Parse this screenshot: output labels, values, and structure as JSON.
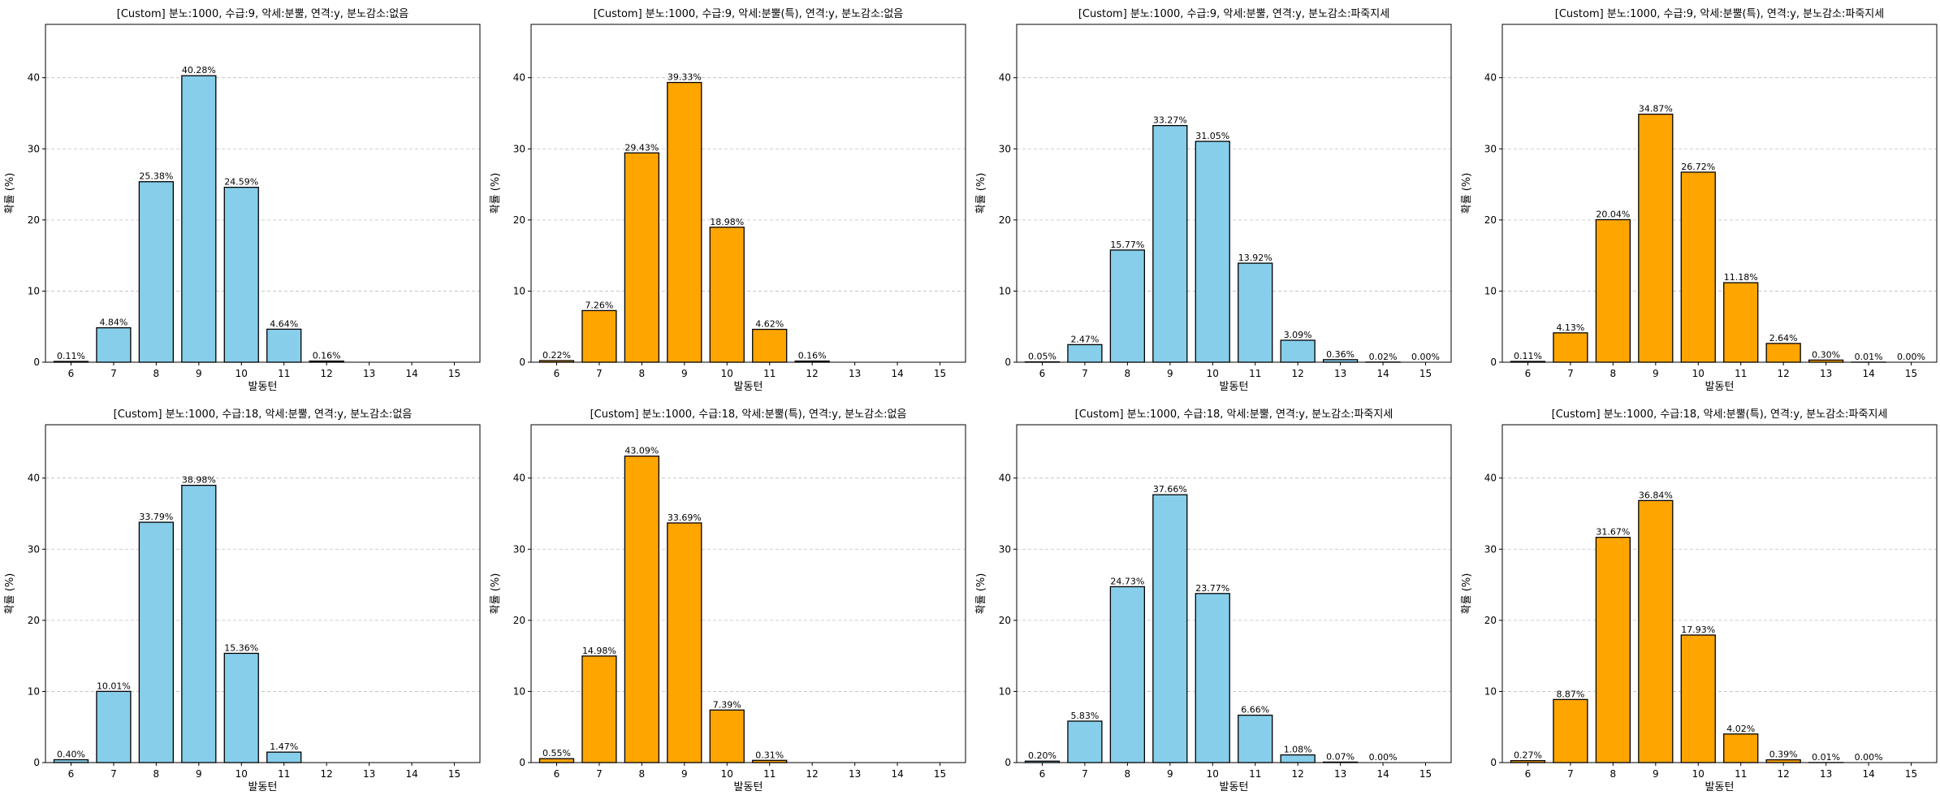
{
  "figure": {
    "xlabel": "발동턴",
    "ylabel": "확률 (%)"
  },
  "chart_data": [
    {
      "type": "bar",
      "title": "[Custom] 분노:1000, 수급:9, 악세:분뿔, 연격:y, 분노감소:없음",
      "xlabel": "발동턴",
      "ylabel": "확률 (%)",
      "categories": [
        "6",
        "7",
        "8",
        "9",
        "10",
        "11",
        "12",
        "13",
        "14",
        "15"
      ],
      "values": [
        0.11,
        4.84,
        25.38,
        40.28,
        24.59,
        4.64,
        0.16,
        null,
        null,
        null
      ],
      "labels": [
        "0.11%",
        "4.84%",
        "25.38%",
        "40.28%",
        "24.59%",
        "4.64%",
        "0.16%",
        "",
        "",
        ""
      ],
      "color": "#87CEEB",
      "ylim": [
        0,
        47.5
      ],
      "yticks": [
        0,
        10,
        20,
        30,
        40
      ],
      "grid": "y-dashed"
    },
    {
      "type": "bar",
      "title": "[Custom] 분노:1000, 수급:9, 악세:분뿔(특), 연격:y, 분노감소:없음",
      "xlabel": "발동턴",
      "ylabel": "확률 (%)",
      "categories": [
        "6",
        "7",
        "8",
        "9",
        "10",
        "11",
        "12",
        "13",
        "14",
        "15"
      ],
      "values": [
        0.22,
        7.26,
        29.43,
        39.33,
        18.98,
        4.62,
        0.16,
        null,
        null,
        null
      ],
      "labels": [
        "0.22%",
        "7.26%",
        "29.43%",
        "39.33%",
        "18.98%",
        "4.62%",
        "0.16%",
        "",
        "",
        ""
      ],
      "color": "#FFA500",
      "ylim": [
        0,
        47.5
      ],
      "yticks": [
        0,
        10,
        20,
        30,
        40
      ],
      "grid": "y-dashed"
    },
    {
      "type": "bar",
      "title": "[Custom] 분노:1000, 수급:9, 악세:분뿔, 연격:y, 분노감소:파죽지세",
      "xlabel": "발동턴",
      "ylabel": "확률 (%)",
      "categories": [
        "6",
        "7",
        "8",
        "9",
        "10",
        "11",
        "12",
        "13",
        "14",
        "15"
      ],
      "values": [
        0.05,
        2.47,
        15.77,
        33.27,
        31.05,
        13.92,
        3.09,
        0.36,
        0.02,
        0.0
      ],
      "labels": [
        "0.05%",
        "2.47%",
        "15.77%",
        "33.27%",
        "31.05%",
        "13.92%",
        "3.09%",
        "0.36%",
        "0.02%",
        "0.00%"
      ],
      "color": "#87CEEB",
      "ylim": [
        0,
        47.5
      ],
      "yticks": [
        0,
        10,
        20,
        30,
        40
      ],
      "grid": "y-dashed"
    },
    {
      "type": "bar",
      "title": "[Custom] 분노:1000, 수급:9, 악세:분뿔(특), 연격:y, 분노감소:파죽지세",
      "xlabel": "발동턴",
      "ylabel": "확률 (%)",
      "categories": [
        "6",
        "7",
        "8",
        "9",
        "10",
        "11",
        "12",
        "13",
        "14",
        "15"
      ],
      "values": [
        0.11,
        4.13,
        20.04,
        34.87,
        26.72,
        11.18,
        2.64,
        0.3,
        0.01,
        0.0
      ],
      "labels": [
        "0.11%",
        "4.13%",
        "20.04%",
        "34.87%",
        "26.72%",
        "11.18%",
        "2.64%",
        "0.30%",
        "0.01%",
        "0.00%"
      ],
      "color": "#FFA500",
      "ylim": [
        0,
        47.5
      ],
      "yticks": [
        0,
        10,
        20,
        30,
        40
      ],
      "grid": "y-dashed"
    },
    {
      "type": "bar",
      "title": "[Custom] 분노:1000, 수급:18, 악세:분뿔, 연격:y, 분노감소:없음",
      "xlabel": "발동턴",
      "ylabel": "확률 (%)",
      "categories": [
        "6",
        "7",
        "8",
        "9",
        "10",
        "11",
        "12",
        "13",
        "14",
        "15"
      ],
      "values": [
        0.4,
        10.01,
        33.79,
        38.98,
        15.36,
        1.47,
        null,
        null,
        null,
        null
      ],
      "labels": [
        "0.40%",
        "10.01%",
        "33.79%",
        "38.98%",
        "15.36%",
        "1.47%",
        "",
        "",
        "",
        ""
      ],
      "color": "#87CEEB",
      "ylim": [
        0,
        47.5
      ],
      "yticks": [
        0,
        10,
        20,
        30,
        40
      ],
      "grid": "y-dashed"
    },
    {
      "type": "bar",
      "title": "[Custom] 분노:1000, 수급:18, 악세:분뿔(특), 연격:y, 분노감소:없음",
      "xlabel": "발동턴",
      "ylabel": "확률 (%)",
      "categories": [
        "6",
        "7",
        "8",
        "9",
        "10",
        "11",
        "12",
        "13",
        "14",
        "15"
      ],
      "values": [
        0.55,
        14.98,
        43.09,
        33.69,
        7.39,
        0.31,
        null,
        null,
        null,
        null
      ],
      "labels": [
        "0.55%",
        "14.98%",
        "43.09%",
        "33.69%",
        "7.39%",
        "0.31%",
        "",
        "",
        "",
        ""
      ],
      "color": "#FFA500",
      "ylim": [
        0,
        47.5
      ],
      "yticks": [
        0,
        10,
        20,
        30,
        40
      ],
      "grid": "y-dashed"
    },
    {
      "type": "bar",
      "title": "[Custom] 분노:1000, 수급:18, 악세:분뿔, 연격:y, 분노감소:파죽지세",
      "xlabel": "발동턴",
      "ylabel": "확률 (%)",
      "categories": [
        "6",
        "7",
        "8",
        "9",
        "10",
        "11",
        "12",
        "13",
        "14",
        "15"
      ],
      "values": [
        0.2,
        5.83,
        24.73,
        37.66,
        23.77,
        6.66,
        1.08,
        0.07,
        0.0,
        null
      ],
      "labels": [
        "0.20%",
        "5.83%",
        "24.73%",
        "37.66%",
        "23.77%",
        "6.66%",
        "1.08%",
        "0.07%",
        "0.00%",
        ""
      ],
      "color": "#87CEEB",
      "ylim": [
        0,
        47.5
      ],
      "yticks": [
        0,
        10,
        20,
        30,
        40
      ],
      "grid": "y-dashed"
    },
    {
      "type": "bar",
      "title": "[Custom] 분노:1000, 수급:18, 악세:분뿔(특), 연격:y, 분노감소:파죽지세",
      "xlabel": "발동턴",
      "ylabel": "확률 (%)",
      "categories": [
        "6",
        "7",
        "8",
        "9",
        "10",
        "11",
        "12",
        "13",
        "14",
        "15"
      ],
      "values": [
        0.27,
        8.87,
        31.67,
        36.84,
        17.93,
        4.02,
        0.39,
        0.01,
        0.0,
        null
      ],
      "labels": [
        "0.27%",
        "8.87%",
        "31.67%",
        "36.84%",
        "17.93%",
        "4.02%",
        "0.39%",
        "0.01%",
        "0.00%",
        ""
      ],
      "color": "#FFA500",
      "ylim": [
        0,
        47.5
      ],
      "yticks": [
        0,
        10,
        20,
        30,
        40
      ],
      "grid": "y-dashed"
    }
  ]
}
